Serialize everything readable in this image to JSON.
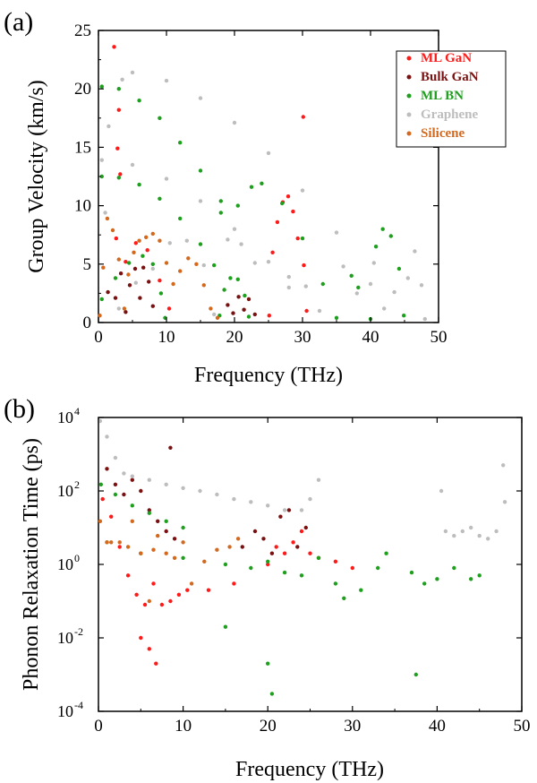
{
  "chart_data": [
    {
      "panel_label": "(a)",
      "type": "scatter",
      "xlabel": "Frequency (THz)",
      "ylabel": "Group Velocity (km/s)",
      "xlim": [
        0,
        50
      ],
      "ylim": [
        0,
        25
      ],
      "xticks": [
        "0",
        "10",
        "20",
        "30",
        "40",
        "50"
      ],
      "yticks": [
        "0",
        "5",
        "10",
        "15",
        "20",
        "25"
      ],
      "legend_position": "top-right",
      "series": [
        {
          "name": "ML GaN",
          "color": "#ff1a1a",
          "points": [
            [
              2.3,
              23.6
            ],
            [
              2.8,
              14.9
            ],
            [
              3.0,
              18.2
            ],
            [
              3.2,
              12.7
            ],
            [
              2.6,
              7.2
            ],
            [
              4.0,
              5.2
            ],
            [
              5.5,
              6.8
            ],
            [
              7.2,
              6.2
            ],
            [
              9.0,
              3.6
            ],
            [
              10.4,
              1.2
            ],
            [
              25.1,
              0.6
            ],
            [
              25.6,
              6.0
            ],
            [
              26.3,
              8.6
            ],
            [
              27.1,
              10.3
            ],
            [
              27.9,
              10.8
            ],
            [
              28.6,
              9.5
            ],
            [
              29.3,
              7.2
            ],
            [
              30.1,
              17.6
            ],
            [
              30.2,
              4.9
            ],
            [
              30.6,
              1.0
            ]
          ]
        },
        {
          "name": "Bulk GaN",
          "color": "#7a1010",
          "points": [
            [
              1.4,
              2.6
            ],
            [
              2.5,
              2.1
            ],
            [
              3.3,
              4.2
            ],
            [
              4.0,
              0.9
            ],
            [
              4.6,
              3.2
            ],
            [
              5.4,
              4.6
            ],
            [
              6.1,
              2.1
            ],
            [
              6.6,
              4.7
            ],
            [
              7.4,
              3.5
            ],
            [
              8.0,
              1.4
            ],
            [
              19.0,
              1.5
            ],
            [
              19.8,
              0.8
            ],
            [
              20.6,
              2.2
            ],
            [
              21.4,
              1.1
            ],
            [
              22.1,
              2.0
            ],
            [
              23.0,
              0.7
            ]
          ]
        },
        {
          "name": "ML BN",
          "color": "#1e9f1e",
          "points": [
            [
              0.5,
              20.2
            ],
            [
              3.0,
              20.0
            ],
            [
              6.0,
              19.0
            ],
            [
              9.0,
              17.5
            ],
            [
              12.0,
              15.4
            ],
            [
              15.0,
              13.0
            ],
            [
              18.0,
              10.4
            ],
            [
              0.5,
              12.5
            ],
            [
              3.0,
              12.4
            ],
            [
              6.0,
              11.8
            ],
            [
              9.0,
              10.6
            ],
            [
              12.0,
              8.9
            ],
            [
              15.0,
              6.7
            ],
            [
              17.0,
              4.9
            ],
            [
              0.5,
              2.0
            ],
            [
              2.5,
              3.8
            ],
            [
              4.5,
              5.1
            ],
            [
              6.5,
              5.7
            ],
            [
              8.0,
              5.0
            ],
            [
              9.2,
              2.5
            ],
            [
              9.8,
              0.4
            ],
            [
              17.8,
              0.6
            ],
            [
              18.5,
              2.8
            ],
            [
              19.4,
              3.8
            ],
            [
              20.5,
              3.7
            ],
            [
              21.5,
              2.3
            ],
            [
              22.1,
              0.5
            ],
            [
              18.0,
              9.4
            ],
            [
              20.5,
              10.0
            ],
            [
              22.5,
              11.6
            ],
            [
              24.0,
              11.9
            ],
            [
              27.0,
              10.2
            ],
            [
              30.0,
              7.2
            ],
            [
              33.0,
              3.3
            ],
            [
              35.0,
              0.4
            ],
            [
              37.2,
              4.0
            ],
            [
              38.2,
              3.0
            ],
            [
              40.0,
              0.3
            ],
            [
              40.8,
              6.5
            ],
            [
              41.8,
              8.0
            ],
            [
              43.0,
              7.4
            ],
            [
              44.2,
              4.6
            ],
            [
              44.9,
              0.6
            ]
          ]
        },
        {
          "name": "Graphene",
          "color": "#bdbdbd",
          "points": [
            [
              0.5,
              13.9
            ],
            [
              5.0,
              13.5
            ],
            [
              10.0,
              12.3
            ],
            [
              15.0,
              10.4
            ],
            [
              20.0,
              8.0
            ],
            [
              25.0,
              5.2
            ],
            [
              28.0,
              3.0
            ],
            [
              3.5,
              20.8
            ],
            [
              5.0,
              21.4
            ],
            [
              10.0,
              20.7
            ],
            [
              15.0,
              19.2
            ],
            [
              20.0,
              17.1
            ],
            [
              25.0,
              14.5
            ],
            [
              30.0,
              11.3
            ],
            [
              35.0,
              7.7
            ],
            [
              40.0,
              3.3
            ],
            [
              42.0,
              1.2
            ],
            [
              3.0,
              1.2
            ],
            [
              5.5,
              3.4
            ],
            [
              8.0,
              4.6
            ],
            [
              10.5,
              6.8
            ],
            [
              13.0,
              7.0
            ],
            [
              15.5,
              4.9
            ],
            [
              17.0,
              0.7
            ],
            [
              19.0,
              7.1
            ],
            [
              21.0,
              6.7
            ],
            [
              23.0,
              5.1
            ],
            [
              28.0,
              3.9
            ],
            [
              30.5,
              3.1
            ],
            [
              32.5,
              1.0
            ],
            [
              36.0,
              4.8
            ],
            [
              38.0,
              2.5
            ],
            [
              40.5,
              5.1
            ],
            [
              43.5,
              2.6
            ],
            [
              45.5,
              3.8
            ],
            [
              46.5,
              6.1
            ],
            [
              47.5,
              3.2
            ],
            [
              48.0,
              0.3
            ],
            [
              1.5,
              16.8
            ],
            [
              1.0,
              9.4
            ]
          ]
        },
        {
          "name": "Silicene",
          "color": "#d2691e",
          "points": [
            [
              0.2,
              0.6
            ],
            [
              0.7,
              4.7
            ],
            [
              1.3,
              8.9
            ],
            [
              2.1,
              7.9
            ],
            [
              3.0,
              5.4
            ],
            [
              3.8,
              1.2
            ],
            [
              4.4,
              4.1
            ],
            [
              5.2,
              6.0
            ],
            [
              6.0,
              7.0
            ],
            [
              7.0,
              7.3
            ],
            [
              8.0,
              7.6
            ],
            [
              9.0,
              7.0
            ],
            [
              10.0,
              5.1
            ],
            [
              11.0,
              3.3
            ],
            [
              12.0,
              4.4
            ],
            [
              13.2,
              5.5
            ],
            [
              14.4,
              5.0
            ],
            [
              15.5,
              3.2
            ],
            [
              16.5,
              1.2
            ],
            [
              17.5,
              0.4
            ]
          ]
        }
      ]
    },
    {
      "panel_label": "(b)",
      "type": "scatter",
      "xlabel": "Frequency (THz)",
      "ylabel": "Phonon Relaxation Time (ps)",
      "xlim": [
        0,
        50
      ],
      "ylim": [
        0.0001,
        10000
      ],
      "yscale": "log",
      "xticks": [
        "0",
        "10",
        "20",
        "30",
        "40",
        "50"
      ],
      "yticks": [
        {
          "base": "10",
          "exp": "4"
        },
        {
          "base": "10",
          "exp": "2"
        },
        {
          "base": "10",
          "exp": "0"
        },
        {
          "base": "10",
          "exp": "-2"
        },
        {
          "base": "10",
          "exp": "-4"
        }
      ],
      "series": [
        {
          "name": "ML GaN",
          "color": "#ff1a1a",
          "points": [
            [
              0.5,
              60
            ],
            [
              1.5,
              20
            ],
            [
              2.5,
              3
            ],
            [
              3.5,
              0.5
            ],
            [
              4.5,
              0.15
            ],
            [
              5.5,
              0.08
            ],
            [
              6.0,
              0.005
            ],
            [
              6.5,
              0.3
            ],
            [
              7.5,
              0.08
            ],
            [
              8.5,
              0.1
            ],
            [
              9.5,
              0.15
            ],
            [
              10.5,
              0.2
            ],
            [
              5.0,
              0.01
            ],
            [
              6.8,
              0.002
            ],
            [
              13.0,
              0.2
            ],
            [
              16.0,
              0.3
            ],
            [
              20.0,
              1.0
            ],
            [
              21.0,
              3.0
            ],
            [
              22.0,
              2.0
            ],
            [
              23.0,
              4.0
            ],
            [
              24.0,
              8.0
            ],
            [
              25.0,
              2.0
            ],
            [
              26.0,
              1.5
            ],
            [
              28.0,
              1.2
            ],
            [
              30.0,
              0.8
            ]
          ]
        },
        {
          "name": "Bulk GaN",
          "color": "#7a1010",
          "points": [
            [
              1.0,
              400
            ],
            [
              2.0,
              150
            ],
            [
              3.0,
              80
            ],
            [
              4.0,
              200
            ],
            [
              5.0,
              100
            ],
            [
              6.0,
              30
            ],
            [
              7.0,
              15
            ],
            [
              8.0,
              8
            ],
            [
              9.0,
              5
            ],
            [
              17.0,
              3
            ],
            [
              18.5,
              8
            ],
            [
              19.5,
              5
            ],
            [
              20.5,
              2
            ],
            [
              21.5,
              20
            ],
            [
              22.5,
              30
            ],
            [
              23.5,
              3
            ],
            [
              24.5,
              10
            ],
            [
              8.5,
              1500
            ]
          ]
        },
        {
          "name": "ML BN",
          "color": "#1e9f1e",
          "points": [
            [
              0.3,
              150
            ],
            [
              2.0,
              80
            ],
            [
              4.0,
              40
            ],
            [
              6.0,
              25
            ],
            [
              8.0,
              15
            ],
            [
              10.0,
              10
            ],
            [
              1.0,
              4
            ],
            [
              5.0,
              2
            ],
            [
              10.0,
              1.5
            ],
            [
              15.0,
              1.0
            ],
            [
              18.0,
              0.8
            ],
            [
              20.0,
              1.2
            ],
            [
              22.0,
              0.6
            ],
            [
              24.0,
              0.5
            ],
            [
              26.0,
              1.5
            ],
            [
              28.0,
              0.3
            ],
            [
              29.0,
              0.12
            ],
            [
              31.0,
              0.2
            ],
            [
              33.0,
              0.8
            ],
            [
              34.0,
              2.0
            ],
            [
              37.0,
              0.6
            ],
            [
              37.5,
              0.001
            ],
            [
              38.5,
              0.3
            ],
            [
              40.0,
              0.4
            ],
            [
              42.0,
              0.8
            ],
            [
              44.0,
              0.4
            ],
            [
              45.0,
              0.5
            ],
            [
              20.0,
              0.002
            ],
            [
              20.5,
              0.0003
            ],
            [
              15.0,
              0.02
            ]
          ]
        },
        {
          "name": "Graphene",
          "color": "#bdbdbd",
          "points": [
            [
              0.2,
              8000
            ],
            [
              1.0,
              3000
            ],
            [
              2.0,
              800
            ],
            [
              3.0,
              300
            ],
            [
              4.0,
              250
            ],
            [
              6.0,
              200
            ],
            [
              8.0,
              150
            ],
            [
              10.0,
              120
            ],
            [
              12.0,
              100
            ],
            [
              14.0,
              80
            ],
            [
              16.0,
              60
            ],
            [
              18.0,
              50
            ],
            [
              20.0,
              40
            ],
            [
              22.0,
              30
            ],
            [
              24.0,
              30
            ],
            [
              25.0,
              60
            ],
            [
              26.0,
              200
            ],
            [
              40.5,
              100
            ],
            [
              41.0,
              8
            ],
            [
              42.0,
              6
            ],
            [
              43.0,
              8
            ],
            [
              44.0,
              10
            ],
            [
              45.0,
              6
            ],
            [
              46.0,
              5
            ],
            [
              47.0,
              8
            ],
            [
              47.8,
              500
            ],
            [
              48.0,
              50
            ]
          ]
        },
        {
          "name": "Silicene",
          "color": "#d2691e",
          "points": [
            [
              0.2,
              15
            ],
            [
              1.0,
              4
            ],
            [
              1.5,
              4
            ],
            [
              2.5,
              4
            ],
            [
              3.5,
              3
            ],
            [
              4.0,
              15
            ],
            [
              5.0,
              2
            ],
            [
              6.0,
              0.1
            ],
            [
              6.5,
              2.5
            ],
            [
              7.0,
              6
            ],
            [
              8.0,
              2
            ],
            [
              9.0,
              1.5
            ],
            [
              10.0,
              4
            ],
            [
              11.0,
              0.3
            ],
            [
              12.5,
              1.2
            ],
            [
              14.0,
              2.5
            ],
            [
              15.5,
              3
            ],
            [
              16.5,
              5
            ]
          ]
        }
      ]
    }
  ]
}
